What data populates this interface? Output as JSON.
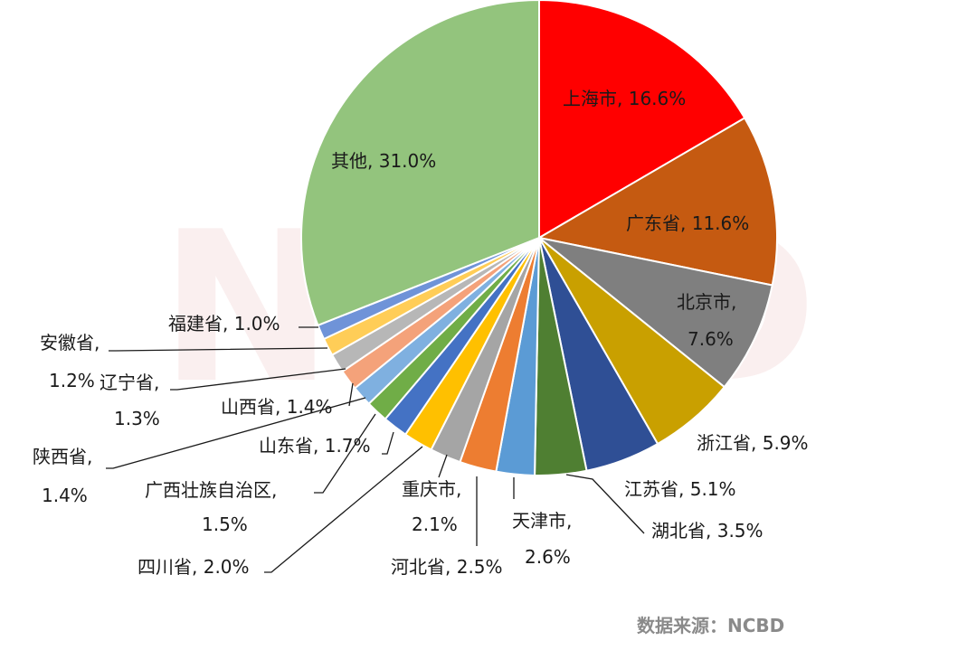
{
  "chart_data": {
    "type": "pie",
    "slices": [
      {
        "label": "上海市",
        "value": 16.6,
        "text": "上海市, 16.6%",
        "color": "#ff0000"
      },
      {
        "label": "广东省",
        "value": 11.6,
        "text": "广东省, 11.6%",
        "color": "#c55a11"
      },
      {
        "label": "北京市",
        "value": 7.6,
        "text": "北京市, 7.6%",
        "color": "#7f7f7f"
      },
      {
        "label": "浙江省",
        "value": 5.9,
        "text": "浙江省, 5.9%",
        "color": "#c9a000"
      },
      {
        "label": "江苏省",
        "value": 5.1,
        "text": "江苏省, 5.1%",
        "color": "#2f4f95"
      },
      {
        "label": "湖北省",
        "value": 3.5,
        "text": "湖北省, 3.5%",
        "color": "#4f7f32"
      },
      {
        "label": "天津市",
        "value": 2.6,
        "text": "天津市, 2.6%",
        "color": "#5b9bd5"
      },
      {
        "label": "河北省",
        "value": 2.5,
        "text": "河北省, 2.5%",
        "color": "#ed7d31"
      },
      {
        "label": "重庆市",
        "value": 2.1,
        "text": "重庆市, 2.1%",
        "color": "#a5a5a5"
      },
      {
        "label": "四川省",
        "value": 2.0,
        "text": "四川省, 2.0%",
        "color": "#ffc000"
      },
      {
        "label": "山东省",
        "value": 1.7,
        "text": "山东省, 1.7%",
        "color": "#4472c4"
      },
      {
        "label": "广西壮族自治区",
        "value": 1.5,
        "text": "广西壮族自治区, 1.5%",
        "color": "#70ad47"
      },
      {
        "label": "陕西省",
        "value": 1.4,
        "text": "陕西省, 1.4%",
        "color": "#7fb0e0"
      },
      {
        "label": "山西省",
        "value": 1.4,
        "text": "山西省, 1.4%",
        "color": "#f4a27a"
      },
      {
        "label": "辽宁省",
        "value": 1.3,
        "text": "辽宁省, 1.3%",
        "color": "#b7b7b7"
      },
      {
        "label": "安徽省",
        "value": 1.2,
        "text": "安徽省, 1.2%",
        "color": "#ffcd57"
      },
      {
        "label": "福建省",
        "value": 1.0,
        "text": "福建省, 1.0%",
        "color": "#6f93d8"
      },
      {
        "label": "其他",
        "value": 31.0,
        "text": "其他, 31.0%",
        "color": "#93c47d"
      }
    ]
  },
  "source": "数据来源：NCBD",
  "watermark": "NCBD"
}
